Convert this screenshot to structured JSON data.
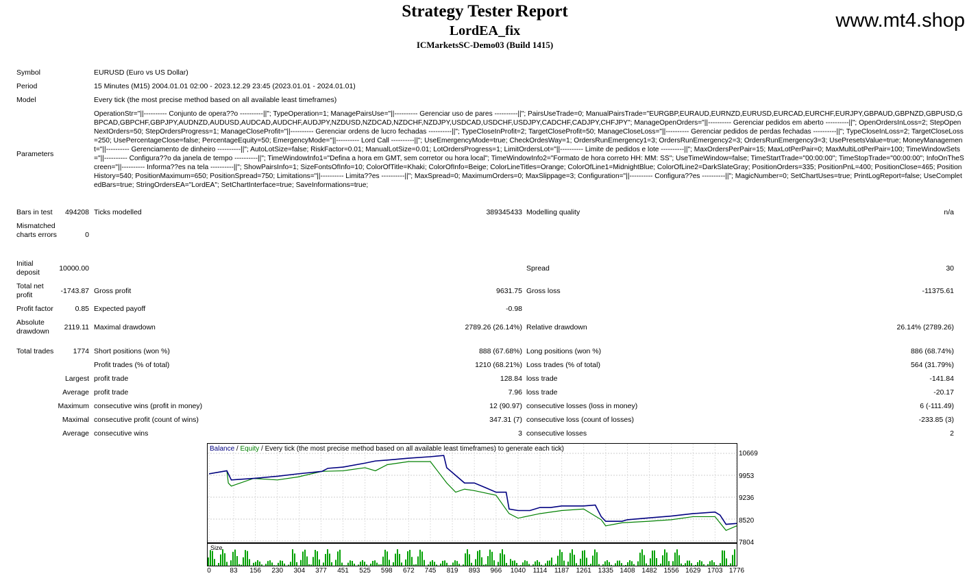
{
  "header": {
    "title": "Strategy Tester Report",
    "ea_name": "LordEA_fix",
    "account": "ICMarketsSC-Demo03 (Build 1415)",
    "watermark": "www.mt4.shop"
  },
  "info": {
    "symbol_label": "Symbol",
    "symbol_value": "EURUSD (Euro vs US Dollar)",
    "period_label": "Period",
    "period_value": "15 Minutes (M15) 2004.01.01 02:00 - 2023.12.29 23:45 (2023.01.01 - 2024.01.01)",
    "model_label": "Model",
    "model_value": "Every tick (the most precise method based on all available least timeframes)",
    "parameters_label": "Parameters",
    "parameters_value": "OperationStr=\"||---------- Conjunto de opera??o ----------||\"; TypeOperation=1; ManagePairsUse=\"||---------- Gerenciar uso de pares ----------||\"; PairsUseTrade=0; ManualPairsTrade=\"EURGBP,EURAUD,EURNZD,EURUSD,EURCAD,EURCHF,EURJPY,GBPAUD,GBPNZD,GBPUSD,GBPCAD,GBPCHF,GBPJPY,AUDNZD,AUDUSD,AUDCAD,AUDCHF,AUDJPY,NZDUSD,NZDCAD,NZDCHF,NZDJPY,USDCAD,USDCHF,USDJPY,CADCHF,CADJPY,CHFJPY\"; ManageOpenOrders=\"||---------- Gerenciar pedidos em aberto ----------||\"; OpenOrdersInLoss=2; StepOpenNextOrders=50; StepOrdersProgress=1; ManageCloseProfit=\"||---------- Gerenciar ordens de lucro fechadas ----------||\"; TypeCloseInProfit=2; TargetCloseProfit=50; ManageCloseLoss=\"||---------- Gerenciar pedidos de perdas fechadas ----------||\"; TypeCloseInLoss=2; TargetCloseLoss=250; UsePercentageClose=false; PercentageEquity=50; EmergencyMode=\"||---------- Lord Call ----------||\"; UseEmergencyMode=true; CheckOrdesWay=1; OrdersRunEmergency1=3; OrdersRunEmergency2=3; OrdersRunEmergency3=3; UsePresetsValue=true; MoneyManagement=\"||---------- Gerenciamento de dinheiro ----------||\"; AutoLotSize=false; RiskFactor=0.01; ManualLotSize=0.01; LotOrdersProgress=1; LimitOrdersLot=\"||---------- Limite de pedidos e lote ----------||\"; MaxOrdersPerPair=15; MaxLotPerPair=0; MaxMultiLotPerPair=100; TimeWindowSets=\"||---------- Configura??o da janela de tempo ----------||\"; TimeWindowInfo1=\"Defina a hora em GMT, sem corretor ou hora local\"; TimeWindowInfo2=\"Formato de hora correto HH: MM: SS\"; UseTimeWindow=false; TimeStartTrade=\"00:00:00\"; TimeStopTrade=\"00:00:00\"; InfoOnTheScreen=\"||---------- Informa??es na tela ----------||\"; ShowPairsInfo=1; SizeFontsOfInfo=10; ColorOfTitle=Khaki; ColorOfInfo=Beige; ColorLineTitles=Orange; ColorOfLine1=MidnightBlue; ColorOfLine2=DarkSlateGray; PositionOrders=335; PositionPnL=400; PositionClose=465; PositionHistory=540; PositionMaximum=650; PositionSpread=750; Limitations=\"||---------- Limita??es ----------||\"; MaxSpread=0; MaximumOrders=0; MaxSlippage=3; Configuration=\"||---------- Configura??es ----------||\"; MagicNumber=0; SetChartUses=true; PrintLogReport=false; UseCompletedBars=true; StringOrdersEA=\"LordEA\"; SetChartInterface=true; SaveInformations=true;"
  },
  "stats": {
    "bars_label": "Bars in test",
    "bars_value": "494208",
    "ticks_label": "Ticks modelled",
    "ticks_value": "389345433",
    "quality_label": "Modelling quality",
    "quality_value": "n/a",
    "mismatch_label": "Mismatched charts errors",
    "mismatch_value": "0",
    "deposit_label": "Initial deposit",
    "deposit_value": "10000.00",
    "spread_label": "Spread",
    "spread_value": "30",
    "netprofit_label": "Total net profit",
    "netprofit_value": "-1743.87",
    "grossprofit_label": "Gross profit",
    "grossprofit_value": "9631.75",
    "grossloss_label": "Gross loss",
    "grossloss_value": "-11375.61",
    "pf_label": "Profit factor",
    "pf_value": "0.85",
    "payoff_label": "Expected payoff",
    "payoff_value": "-0.98",
    "absdd_label": "Absolute drawdown",
    "absdd_value": "2119.11",
    "maxdd_label": "Maximal drawdown",
    "maxdd_value": "2789.26 (26.14%)",
    "reldd_label": "Relative drawdown",
    "reldd_value": "26.14% (2789.26)",
    "trades_label": "Total trades",
    "trades_value": "1774",
    "short_label": "Short positions (won %)",
    "short_value": "888 (67.68%)",
    "long_label": "Long positions (won %)",
    "long_value": "886 (68.74%)",
    "ptrades_label": "Profit trades (% of total)",
    "ptrades_value": "1210 (68.21%)",
    "ltrades_label": "Loss trades (% of total)",
    "ltrades_value": "564 (31.79%)",
    "largest_label": "Largest",
    "largest_p_label": "profit trade",
    "largest_p_value": "128.84",
    "largest_l_label": "loss trade",
    "largest_l_value": "-141.84",
    "average_label": "Average",
    "average_p_label": "profit trade",
    "average_p_value": "7.96",
    "average_l_label": "loss trade",
    "average_l_value": "-20.17",
    "maximum_label": "Maximum",
    "maximum_p_label": "consecutive wins (profit in money)",
    "maximum_p_value": "12 (90.97)",
    "maximum_l_label": "consecutive losses (loss in money)",
    "maximum_l_value": "6 (-111.49)",
    "maximal_label": "Maximal",
    "maximal_p_label": "consecutive profit (count of wins)",
    "maximal_p_value": "347.31 (7)",
    "maximal_l_label": "consecutive loss (count of losses)",
    "maximal_l_value": "-233.85 (3)",
    "avg2_label": "Average",
    "avg2_p_label": "consecutive wins",
    "avg2_p_value": "3",
    "avg2_l_label": "consecutive losses",
    "avg2_l_value": "2"
  },
  "graph": {
    "legend_balance": "Balance",
    "legend_sep1": " / ",
    "legend_equity": "Equity",
    "legend_rest": " / Every tick (the most precise method based on all available least timeframes) to generate each tick)",
    "size_label": "Size",
    "balance_color": "#000080",
    "equity_color": "#008000",
    "size_color": "#00a000",
    "y_ticks": [
      "10669",
      "9953",
      "9236",
      "8520",
      "7804"
    ],
    "x_ticks": [
      "0",
      "83",
      "156",
      "230",
      "304",
      "377",
      "451",
      "525",
      "598",
      "672",
      "745",
      "819",
      "893",
      "966",
      "1040",
      "1114",
      "1187",
      "1261",
      "1335",
      "1408",
      "1482",
      "1556",
      "1629",
      "1703",
      "1776"
    ],
    "chart_data": {
      "type": "line",
      "x_range": [
        0,
        1776
      ],
      "y_range": [
        7804,
        10669
      ],
      "series": [
        {
          "name": "Balance",
          "x": [
            0,
            60,
            75,
            150,
            230,
            300,
            380,
            400,
            451,
            525,
            560,
            600,
            672,
            745,
            790,
            800,
            860,
            893,
            930,
            966,
            1000,
            1010,
            1040,
            1080,
            1114,
            1150,
            1187,
            1261,
            1300,
            1320,
            1335,
            1390,
            1408,
            1482,
            1556,
            1629,
            1703,
            1720,
            1740,
            1776
          ],
          "y": [
            10000,
            10100,
            9800,
            9850,
            9920,
            10000,
            10080,
            10180,
            10220,
            10350,
            10420,
            10450,
            10510,
            10560,
            10600,
            10200,
            9700,
            9700,
            9550,
            9400,
            9400,
            8850,
            8800,
            8800,
            8900,
            8900,
            8950,
            8950,
            8980,
            8600,
            8450,
            8450,
            8500,
            8560,
            8620,
            8700,
            8750,
            8650,
            8350,
            8380
          ]
        },
        {
          "name": "Equity",
          "x": [
            0,
            60,
            65,
            75,
            150,
            230,
            300,
            380,
            451,
            525,
            560,
            600,
            672,
            745,
            800,
            830,
            860,
            893,
            966,
            1010,
            1040,
            1114,
            1187,
            1261,
            1320,
            1335,
            1390,
            1482,
            1556,
            1629,
            1703,
            1740,
            1776
          ],
          "y": [
            10000,
            10100,
            9700,
            9600,
            9850,
            9800,
            9900,
            10080,
            10100,
            10200,
            10100,
            10300,
            10400,
            10400,
            9700,
            9400,
            9500,
            9450,
            9300,
            8700,
            8550,
            8700,
            8800,
            8850,
            8500,
            8300,
            8400,
            8450,
            8500,
            8600,
            8600,
            8150,
            8300
          ]
        }
      ]
    }
  }
}
